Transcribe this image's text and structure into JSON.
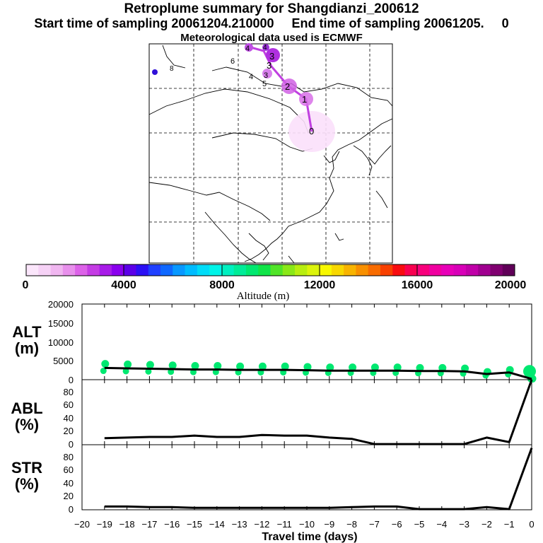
{
  "title": {
    "line1": "Retroplume summary for Shangdianzi_200612",
    "line2": "Start time of sampling 20061204.210000     End time of sampling 20061205.     0",
    "line3": "Meteorological data used is ECMWF"
  },
  "map": {
    "trajectory_labels": [
      "0",
      "1",
      "2",
      "3",
      "3",
      "3",
      "4",
      "5",
      "6",
      "4",
      "4",
      "8"
    ]
  },
  "colorbar": {
    "tick_labels": [
      "0",
      "4000",
      "8000",
      "12000",
      "16000",
      "20000"
    ],
    "label": "Altitude  (m)",
    "colors": [
      "#fbe6fb",
      "#f6d2f6",
      "#f0b6f0",
      "#e890ec",
      "#dc62e8",
      "#c43ce4",
      "#a81ce8",
      "#8a00ee",
      "#5c00e8",
      "#2c10f4",
      "#2040ff",
      "#0f68ff",
      "#0898ff",
      "#00bcff",
      "#00dcf8",
      "#00f4e8",
      "#00f0c0",
      "#00ec98",
      "#00e870",
      "#10e448",
      "#50e428",
      "#8ae818",
      "#b8ee10",
      "#dcf40c",
      "#f8f800",
      "#f8d800",
      "#f8b400",
      "#f89000",
      "#f86c00",
      "#f84000",
      "#f80c10",
      "#f80050",
      "#f8007c",
      "#f000a0",
      "#e800b8",
      "#d800b8",
      "#c000a8",
      "#a00090",
      "#800070",
      "#600058"
    ]
  },
  "axes": {
    "xlabel": "Travel time (days)",
    "xticks": [
      "−20",
      "−19",
      "−18",
      "−17",
      "−16",
      "−15",
      "−14",
      "−13",
      "−12",
      "−11",
      "−10",
      "−9",
      "−8",
      "−7",
      "−6",
      "−5",
      "−4",
      "−3",
      "−2",
      "−1",
      "0"
    ],
    "alt_label_1": "ALT",
    "alt_label_2": "(m)",
    "alt_yticks": [
      "20000",
      "15000",
      "10000",
      "5000",
      "0"
    ],
    "abl_label_1": "ABL",
    "abl_label_2": "(%)",
    "abl_yticks": [
      "80",
      "60",
      "40",
      "20",
      "0"
    ],
    "str_label_1": "STR",
    "str_label_2": "(%)",
    "str_yticks": [
      "80",
      "60",
      "40",
      "20",
      "0"
    ]
  },
  "chart_data": [
    {
      "type": "line",
      "name": "ALT",
      "title": "Retroplume summary for Shangdianzi_200612",
      "xlabel": "Travel time (days)",
      "ylabel": "ALT (m)",
      "xlim": [
        -20,
        0
      ],
      "ylim": [
        0,
        20000
      ],
      "x": [
        -19,
        -18,
        -17,
        -16,
        -15,
        -14,
        -13,
        -12,
        -11,
        -10,
        -9,
        -8,
        -7,
        -6,
        -5,
        -4,
        -3,
        -2,
        -1,
        0
      ],
      "values": [
        3100,
        3000,
        2900,
        2800,
        2700,
        2700,
        2600,
        2600,
        2600,
        2500,
        2400,
        2400,
        2400,
        2400,
        2300,
        2300,
        2200,
        1500,
        1900,
        200
      ],
      "markers_color": "#00e870"
    },
    {
      "type": "line",
      "name": "ABL",
      "xlabel": "Travel time (days)",
      "ylabel": "ABL (%)",
      "xlim": [
        -20,
        0
      ],
      "ylim": [
        0,
        100
      ],
      "x": [
        -19,
        -18,
        -17,
        -16,
        -15,
        -14,
        -13,
        -12,
        -11,
        -10,
        -9,
        -8,
        -7,
        -6,
        -5,
        -4,
        -3,
        -2,
        -1,
        0
      ],
      "values": [
        10,
        11,
        12,
        12,
        14,
        12,
        12,
        15,
        14,
        14,
        11,
        9,
        1,
        1,
        1,
        1,
        1,
        11,
        4,
        100
      ]
    },
    {
      "type": "line",
      "name": "STR",
      "xlabel": "Travel time (days)",
      "ylabel": "STR (%)",
      "xlim": [
        -20,
        0
      ],
      "ylim": [
        0,
        100
      ],
      "x": [
        -19,
        -18,
        -17,
        -16,
        -15,
        -14,
        -13,
        -12,
        -11,
        -10,
        -9,
        -8,
        -7,
        -6,
        -5,
        -4,
        -3,
        -2,
        -1,
        0
      ],
      "values": [
        5,
        5,
        4,
        4,
        3,
        3,
        3,
        3,
        3,
        3,
        3,
        4,
        5,
        5,
        1,
        1,
        1,
        4,
        1,
        95
      ]
    }
  ]
}
